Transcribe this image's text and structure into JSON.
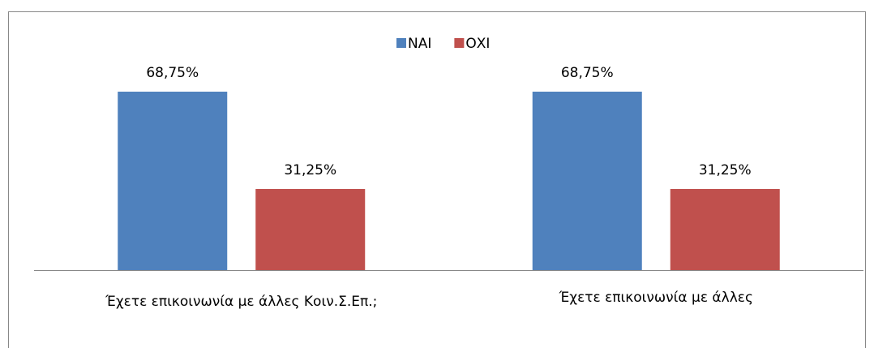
{
  "chart_data": {
    "type": "bar",
    "categories": [
      "Έχετε επικοινωνία με άλλες  Κοιν.Σ.Επ.;",
      "Έχετε επικοινωνία με άλλες"
    ],
    "series": [
      {
        "name": "ΝΑΙ",
        "color": "#4f81bd",
        "values": [
          68.75,
          68.75
        ],
        "value_labels": [
          "68,75%",
          "68,75%"
        ]
      },
      {
        "name": "ΟΧΙ",
        "color": "#c0504d",
        "values": [
          31.25,
          31.25
        ],
        "value_labels": [
          "31,25%",
          "31,25%"
        ]
      }
    ],
    "ylim": [
      0,
      80
    ],
    "legend": "top"
  }
}
